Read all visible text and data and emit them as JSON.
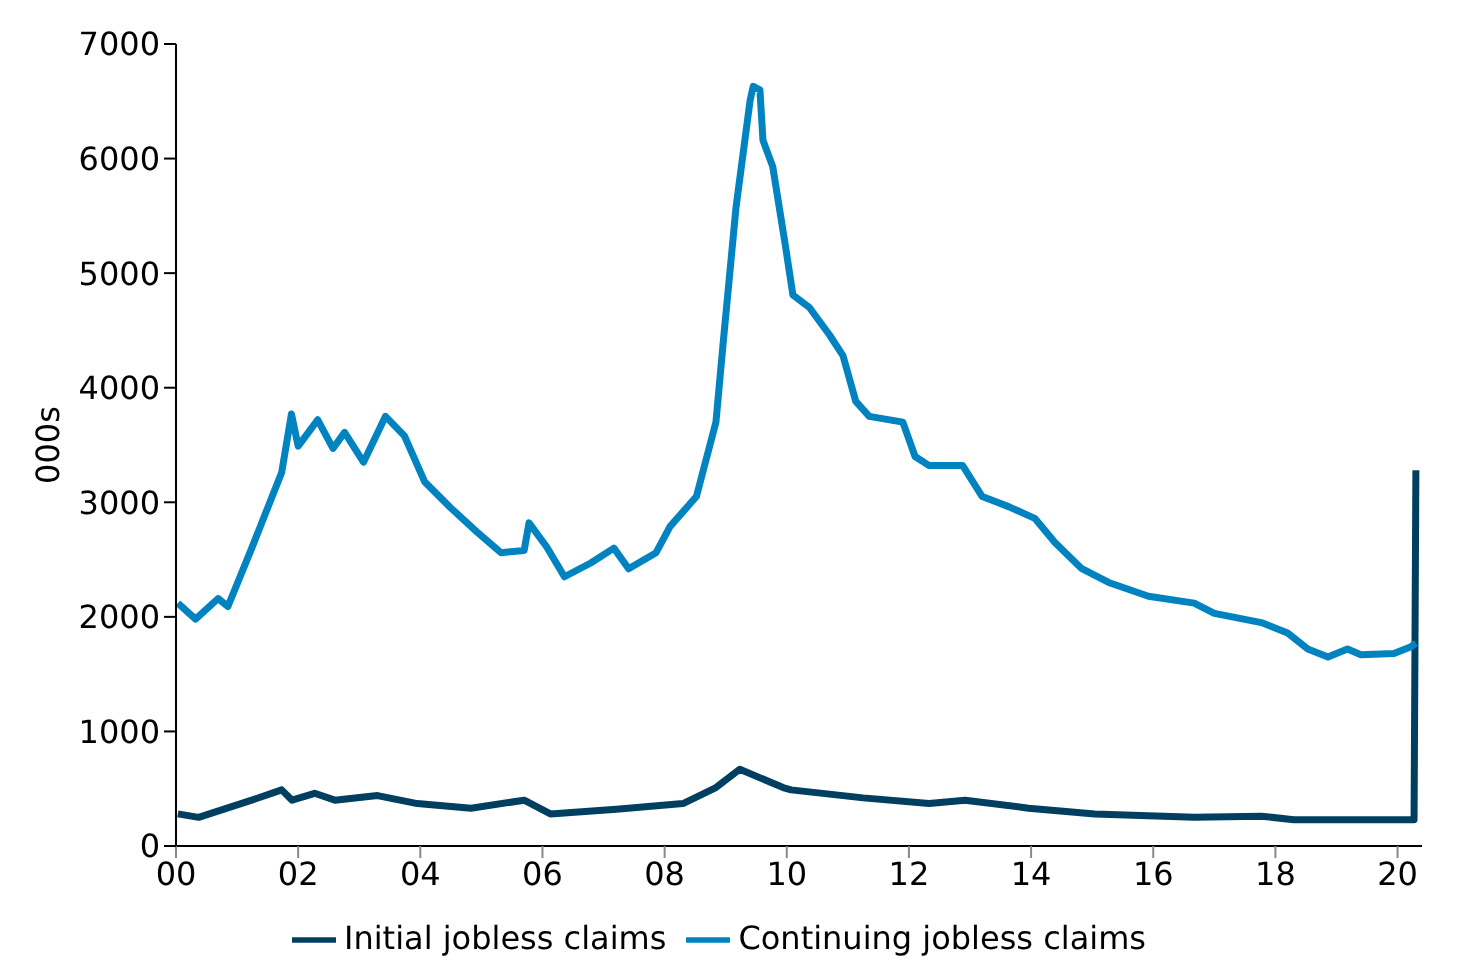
{
  "chart_data": {
    "type": "line",
    "ylabel": "000s",
    "xlim": [
      0,
      20.4
    ],
    "ylim": [
      0,
      7000
    ],
    "yticks": [
      0,
      1000,
      2000,
      3000,
      4000,
      5000,
      6000,
      7000
    ],
    "xticks": [
      {
        "value": 0,
        "label": "00"
      },
      {
        "value": 2,
        "label": "02"
      },
      {
        "value": 4,
        "label": "04"
      },
      {
        "value": 6,
        "label": "06"
      },
      {
        "value": 8,
        "label": "08"
      },
      {
        "value": 10,
        "label": "10"
      },
      {
        "value": 12,
        "label": "12"
      },
      {
        "value": 14,
        "label": "14"
      },
      {
        "value": 16,
        "label": "16"
      },
      {
        "value": 18,
        "label": "18"
      },
      {
        "value": 20,
        "label": "20"
      }
    ],
    "grid": false,
    "legend": "bottom",
    "marker": "none",
    "line_style": "solid",
    "series": [
      {
        "name": "Initial jobless claims",
        "color": "#003f5f",
        "x": [
          0.03,
          0.37,
          1.24,
          1.73,
          1.9,
          2.27,
          2.6,
          3.3,
          3.95,
          4.83,
          5.7,
          6.13,
          7.21,
          8.3,
          8.84,
          9.23,
          9.94,
          10.07,
          11.25,
          12.33,
          12.92,
          13.96,
          15.04,
          16.67,
          17.77,
          18.3,
          20.16,
          20.27,
          20.3
        ],
        "values": [
          280,
          250,
          400,
          490,
          400,
          460,
          400,
          440,
          370,
          330,
          400,
          280,
          320,
          370,
          510,
          670,
          510,
          490,
          420,
          370,
          400,
          330,
          280,
          250,
          260,
          230,
          230,
          230,
          3280
        ]
      },
      {
        "name": "Continuing jobless claims",
        "color": "#0083c0",
        "x": [
          0.03,
          0.32,
          0.69,
          0.85,
          1.24,
          1.5,
          1.73,
          1.89,
          2.0,
          2.32,
          2.57,
          2.76,
          3.07,
          3.43,
          3.74,
          4.07,
          4.5,
          4.93,
          5.32,
          5.7,
          5.78,
          6.07,
          6.36,
          6.79,
          7.17,
          7.41,
          7.86,
          8.09,
          8.52,
          8.84,
          8.96,
          9.17,
          9.4,
          9.45,
          9.56,
          9.61,
          9.77,
          9.98,
          10.1,
          10.37,
          10.7,
          10.92,
          11.13,
          11.35,
          11.9,
          12.1,
          12.33,
          12.88,
          13.2,
          13.64,
          14.06,
          14.39,
          14.83,
          15.27,
          15.92,
          16.67,
          17.0,
          17.77,
          18.2,
          18.53,
          18.86,
          19.18,
          19.4,
          19.94,
          20.22,
          20.3
        ],
        "values": [
          2120,
          1980,
          2160,
          2090,
          2600,
          2950,
          3260,
          3770,
          3490,
          3720,
          3470,
          3610,
          3350,
          3750,
          3580,
          3180,
          2950,
          2740,
          2560,
          2580,
          2820,
          2610,
          2350,
          2470,
          2600,
          2420,
          2560,
          2790,
          3050,
          3700,
          4400,
          5580,
          6510,
          6630,
          6600,
          6160,
          5930,
          5230,
          4810,
          4700,
          4460,
          4280,
          3880,
          3750,
          3700,
          3400,
          3320,
          3320,
          3050,
          2960,
          2860,
          2650,
          2420,
          2300,
          2180,
          2120,
          2030,
          1950,
          1860,
          1720,
          1650,
          1720,
          1670,
          1680,
          1740,
          1770
        ]
      }
    ]
  }
}
